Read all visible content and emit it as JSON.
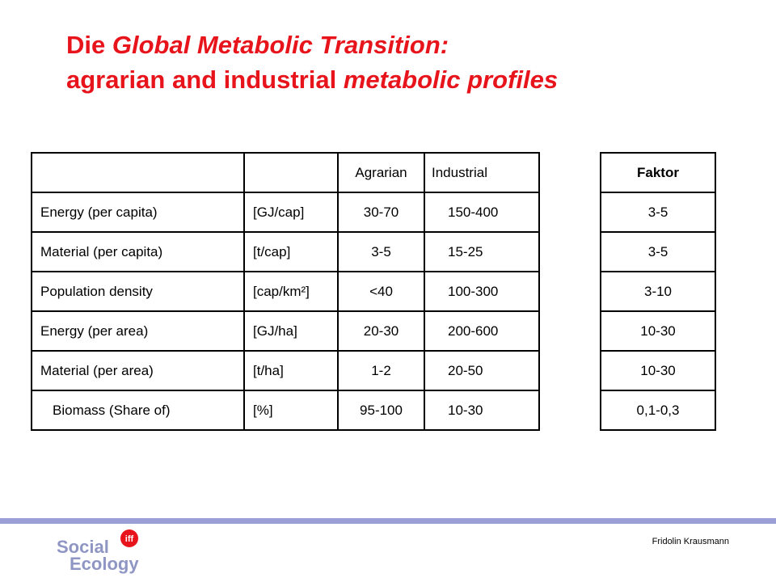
{
  "title": {
    "line1": {
      "a": "Die ",
      "b": "Global Metabolic Transition:"
    },
    "line2": {
      "a": "agrarian and industrial ",
      "b": "metabolic profiles"
    }
  },
  "table": {
    "header": [
      "",
      "",
      "Agrarian",
      "Industrial"
    ],
    "rows": [
      [
        "Energy (per capita)",
        "[GJ/cap]",
        "30-70",
        "150-400"
      ],
      [
        "Material (per capita)",
        "[t/cap]",
        "3-5",
        "15-25"
      ],
      [
        "Population density",
        "[cap/km²]",
        "<40",
        "100-300"
      ],
      [
        "Energy (per area)",
        "[GJ/ha]",
        "20-30",
        "200-600"
      ],
      [
        "Material (per area)",
        "[t/ha]",
        "1-2",
        "20-50"
      ],
      [
        "Biomass (Share of)",
        "[%]",
        "95-100",
        "10-30"
      ]
    ]
  },
  "faktor": {
    "header": "Faktor",
    "values": [
      "3-5",
      "3-5",
      "3-10",
      "10-30",
      "10-30",
      "0,1-0,3"
    ]
  },
  "footer": {
    "author": "Fridolin Krausmann",
    "logo": {
      "word1": "Social",
      "word2": "Ecology",
      "badge": "iff"
    }
  },
  "colors": {
    "title": "#e8141c",
    "footer_bar": "#9a9fd6",
    "logo_text": "#8f96c4",
    "logo_badge": "#e8141c"
  }
}
